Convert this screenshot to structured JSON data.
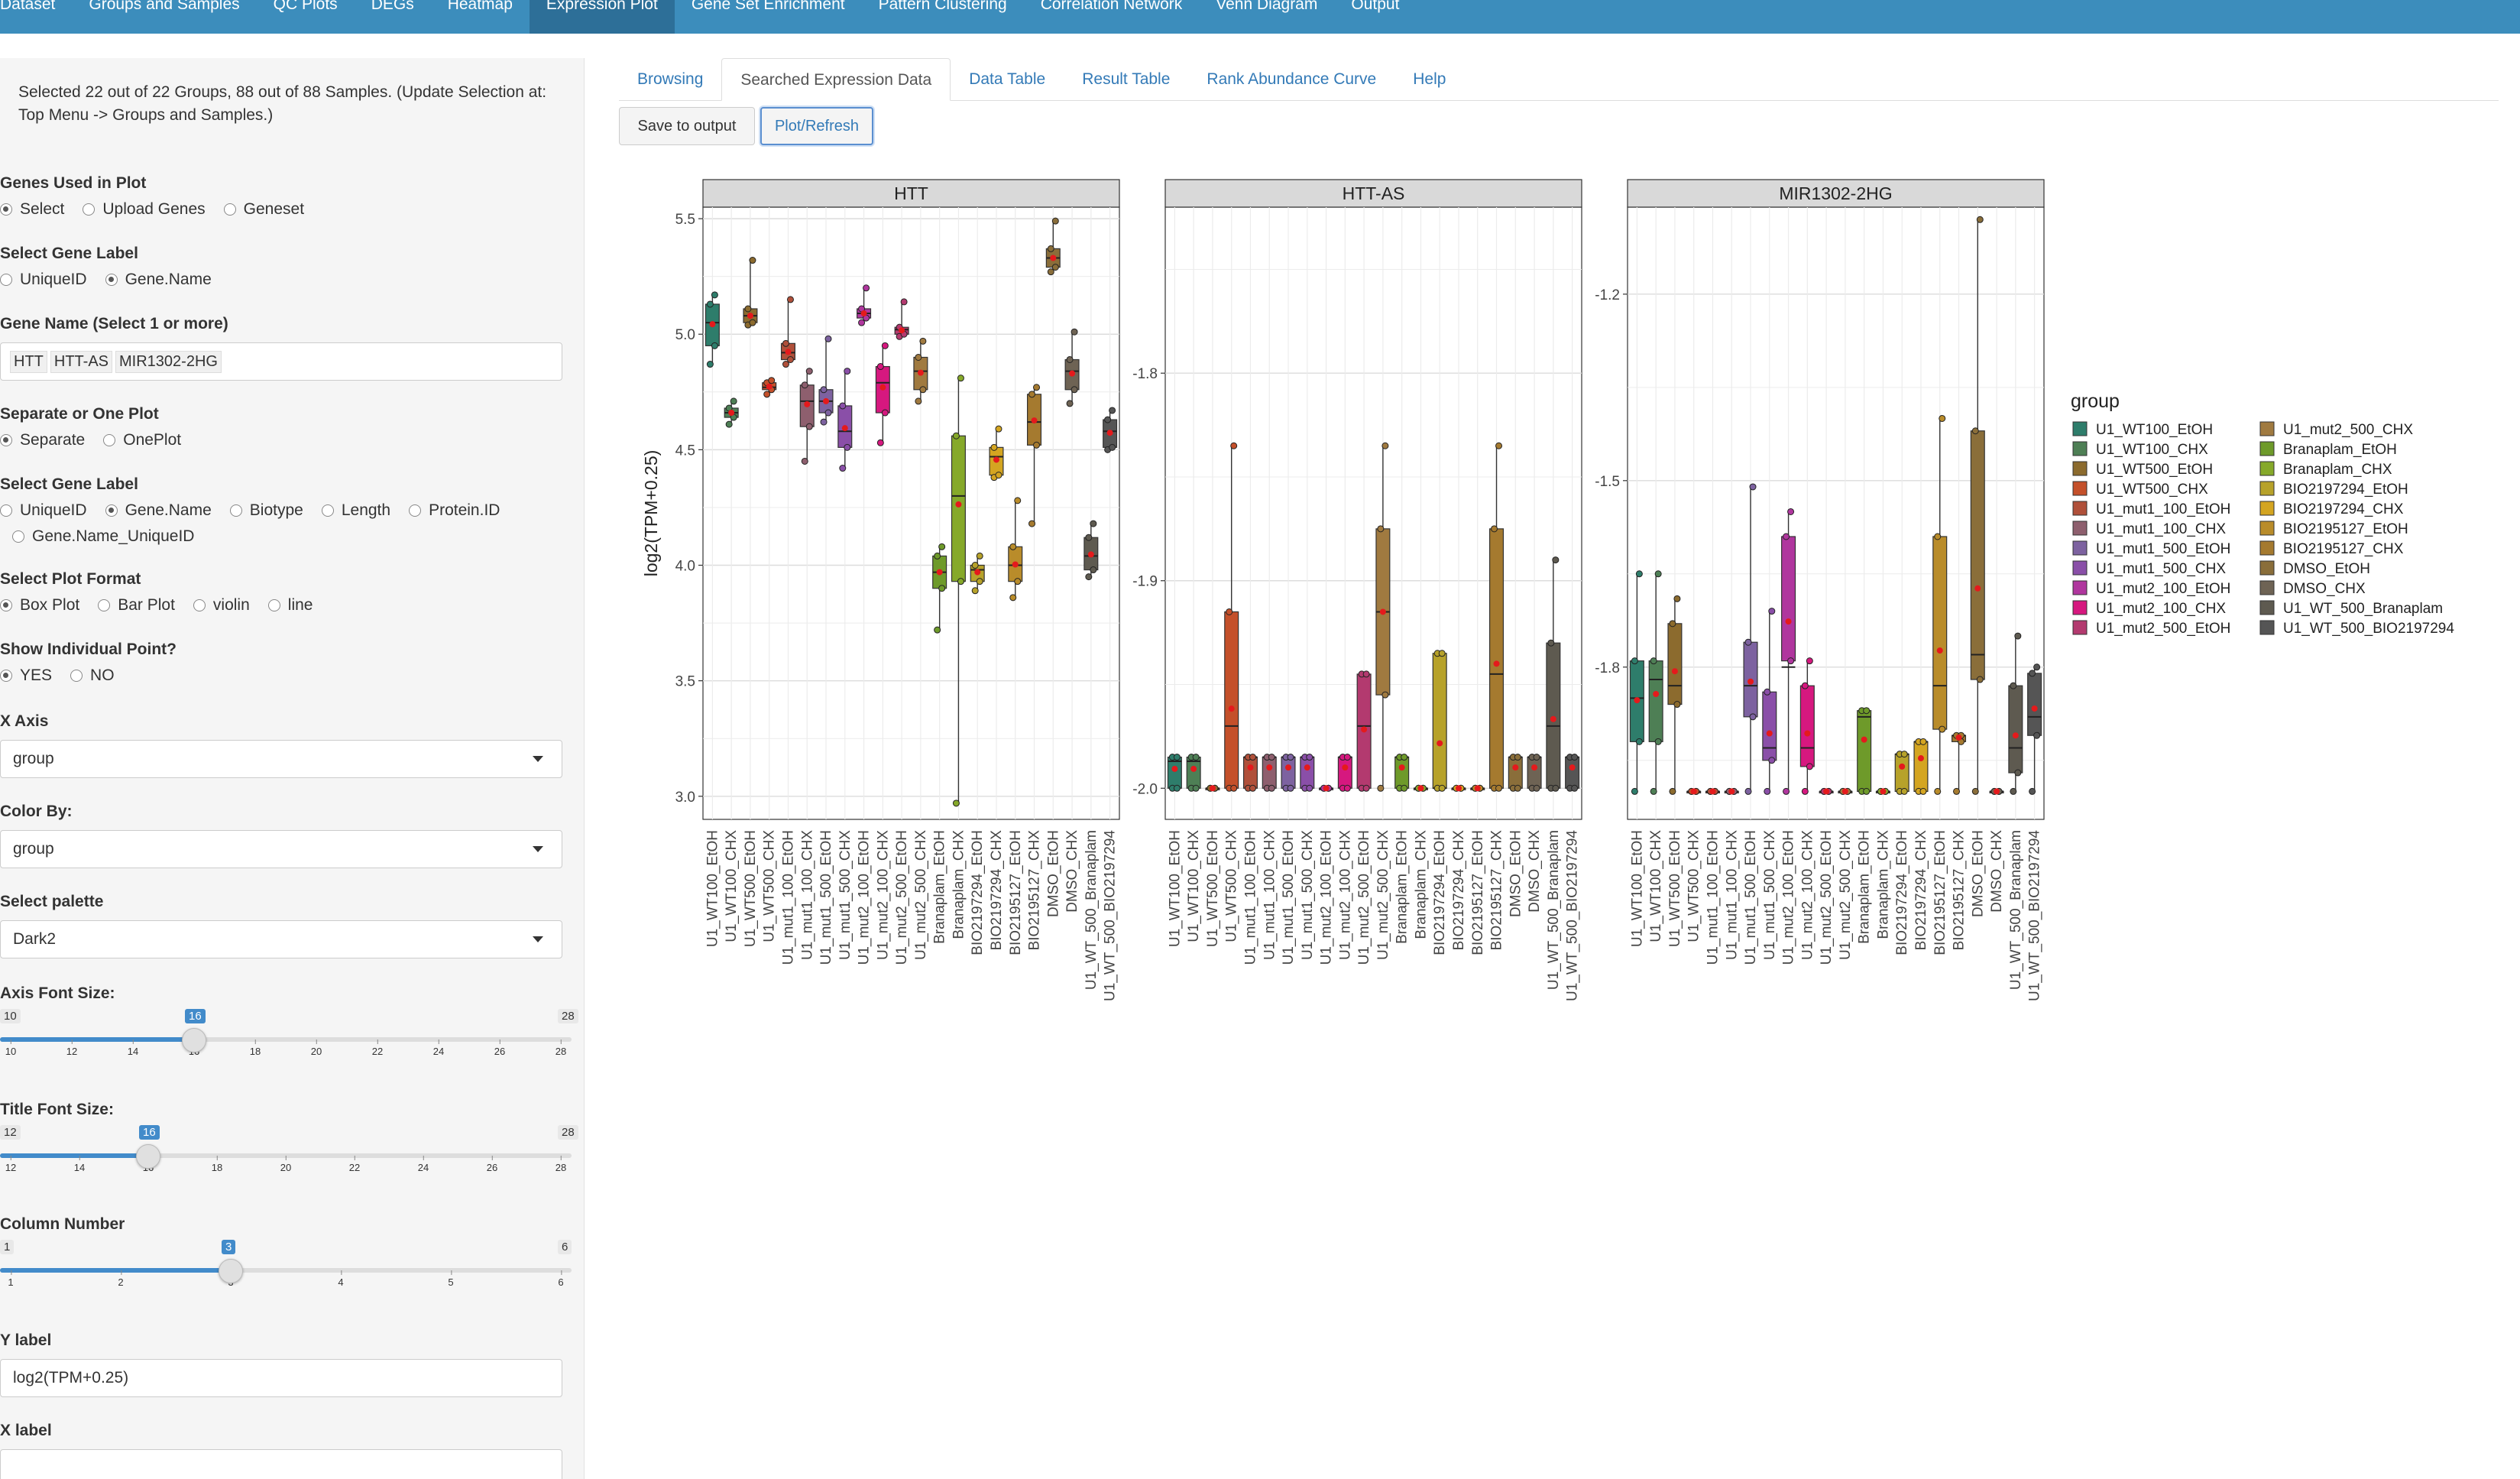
{
  "topnav": {
    "items": [
      "Dataset",
      "Groups and Samples",
      "QC Plots",
      "DEGs",
      "Heatmap",
      "Expression Plot",
      "Gene Set Enrichment",
      "Pattern Clustering",
      "Correlation Network",
      "Venn Diagram",
      "Output"
    ],
    "active_index": 5,
    "bg_color": "#3c8dbc"
  },
  "sidebar": {
    "selection_info": "Selected 22 out of 22 Groups, 88 out of 88 Samples. (Update Selection at: Top Menu -> Groups and Samples.)",
    "genes_used": {
      "label": "Genes Used in Plot",
      "options": [
        "Select",
        "Upload Genes",
        "Geneset"
      ],
      "selected": 0
    },
    "select_gene_label_1": {
      "label": "Select Gene Label",
      "options": [
        "UniqueID",
        "Gene.Name"
      ],
      "selected": 1
    },
    "gene_name": {
      "label": "Gene Name (Select 1 or more)",
      "tags": [
        "HTT",
        "HTT-AS",
        "MIR1302-2HG"
      ]
    },
    "separate_or_one": {
      "label": "Separate or One Plot",
      "options": [
        "Separate",
        "OnePlot"
      ],
      "selected": 0
    },
    "select_gene_label_2": {
      "label": "Select Gene Label",
      "options": [
        "UniqueID",
        "Gene.Name",
        "Biotype",
        "Length",
        "Protein.ID",
        "Gene.Name_UniqueID"
      ],
      "selected": 1
    },
    "plot_format": {
      "label": "Select Plot Format",
      "options": [
        "Box Plot",
        "Bar Plot",
        "violin",
        "line"
      ],
      "selected": 0
    },
    "show_points": {
      "label": "Show Individual Point?",
      "options": [
        "YES",
        "NO"
      ],
      "selected": 0
    },
    "x_axis": {
      "label": "X Axis",
      "value": "group"
    },
    "color_by": {
      "label": "Color By:",
      "value": "group"
    },
    "palette": {
      "label": "Select palette",
      "value": "Dark2"
    },
    "axis_font": {
      "label": "Axis Font Size:",
      "min": 10,
      "max": 28,
      "value": 16,
      "ticks": [
        10,
        12,
        14,
        16,
        18,
        20,
        22,
        24,
        26,
        28
      ]
    },
    "title_font": {
      "label": "Title Font Size:",
      "min": 12,
      "max": 28,
      "value": 16,
      "ticks": [
        12,
        14,
        16,
        18,
        20,
        22,
        24,
        26,
        28
      ]
    },
    "column_number": {
      "label": "Column Number",
      "min": 1,
      "max": 6,
      "value": 3,
      "ticks": [
        1,
        2,
        3,
        4,
        5,
        6
      ]
    },
    "y_label": {
      "label": "Y label",
      "value": "log2(TPM+0.25)"
    },
    "x_label": {
      "label": "X label",
      "value": ""
    }
  },
  "main": {
    "tabs": [
      "Browsing",
      "Searched Expression Data",
      "Data Table",
      "Result Table",
      "Rank Abundance Curve",
      "Help"
    ],
    "active_tab": 1,
    "buttons": {
      "save": "Save to output",
      "refresh": "Plot/Refresh"
    }
  },
  "chart_data": {
    "type": "box",
    "ylabel": "log2(TPM+0.25)",
    "legend_title": "group",
    "legend_position": "right",
    "groups": [
      "U1_WT100_EtOH",
      "U1_WT100_CHX",
      "U1_WT500_EtOH",
      "U1_WT500_CHX",
      "U1_mut1_100_EtOH",
      "U1_mut1_100_CHX",
      "U1_mut1_500_EtOH",
      "U1_mut1_500_CHX",
      "U1_mut2_100_EtOH",
      "U1_mut2_100_CHX",
      "U1_mut2_500_EtOH",
      "U1_mut2_500_CHX",
      "Branaplam_EtOH",
      "Branaplam_CHX",
      "BIO2197294_EtOH",
      "BIO2197294_CHX",
      "BIO2195127_EtOH",
      "BIO2195127_CHX",
      "DMSO_EtOH",
      "DMSO_CHX",
      "U1_WT_500_Branaplam",
      "U1_WT_500_BIO2197294"
    ],
    "colors": [
      "#2E7D6B",
      "#4E7F55",
      "#8C6B2E",
      "#C4502A",
      "#B0503A",
      "#8E5F6E",
      "#7D62A0",
      "#8A4FA8",
      "#B0369E",
      "#D6187F",
      "#B33A6F",
      "#A07A40",
      "#6E9A2A",
      "#86A92A",
      "#B7A22A",
      "#D4A521",
      "#B98C2A",
      "#A57A2F",
      "#8A6E3A",
      "#6E6354",
      "#5E5A50",
      "#555555"
    ],
    "panels": [
      {
        "title": "HTT",
        "ylim": [
          2.9,
          5.55
        ],
        "yticks": [
          3.0,
          3.5,
          4.0,
          4.5,
          5.0,
          5.5
        ],
        "boxes": [
          [
            4.87,
            4.95,
            5.05,
            5.13,
            5.17
          ],
          [
            4.61,
            4.64,
            4.66,
            4.68,
            4.71
          ],
          [
            5.04,
            5.05,
            5.08,
            5.11,
            5.32
          ],
          [
            4.74,
            4.76,
            4.77,
            4.79,
            4.8
          ],
          [
            4.87,
            4.89,
            4.92,
            4.96,
            5.15
          ],
          [
            4.45,
            4.6,
            4.71,
            4.78,
            4.84
          ],
          [
            4.62,
            4.66,
            4.71,
            4.76,
            4.98
          ],
          [
            4.42,
            4.51,
            4.58,
            4.69,
            4.84
          ],
          [
            5.05,
            5.07,
            5.09,
            5.11,
            5.2
          ],
          [
            4.53,
            4.66,
            4.79,
            4.86,
            4.95
          ],
          [
            4.99,
            5.0,
            5.02,
            5.03,
            5.14
          ],
          [
            4.71,
            4.76,
            4.84,
            4.9,
            4.97
          ],
          [
            3.72,
            3.9,
            3.97,
            4.04,
            4.08
          ],
          [
            2.97,
            3.93,
            4.3,
            4.56,
            4.81
          ],
          [
            3.89,
            3.93,
            3.98,
            4.0,
            4.04
          ],
          [
            4.38,
            4.39,
            4.47,
            4.51,
            4.59
          ],
          [
            3.86,
            3.93,
            4.0,
            4.08,
            4.28
          ],
          [
            4.18,
            4.52,
            4.62,
            4.74,
            4.77
          ],
          [
            5.27,
            5.29,
            5.33,
            5.37,
            5.49
          ],
          [
            4.7,
            4.76,
            4.84,
            4.89,
            5.01
          ],
          [
            3.95,
            3.98,
            4.04,
            4.12,
            4.18
          ],
          [
            4.5,
            4.51,
            4.58,
            4.63,
            4.67
          ]
        ]
      },
      {
        "title": "HTT-AS",
        "ylim": [
          -2.015,
          -1.72
        ],
        "yticks": [
          -1.8,
          -1.9,
          -2.0
        ],
        "boxes": [
          [
            -2.0,
            -2.0,
            -1.987,
            -1.985,
            -1.985
          ],
          [
            -2.0,
            -2.0,
            -1.987,
            -1.985,
            -1.985
          ],
          [
            -2.0,
            -2.0,
            -2.0,
            -2.0,
            -2.0
          ],
          [
            -2.0,
            -2.0,
            -1.97,
            -1.915,
            -1.835
          ],
          [
            -2.0,
            -2.0,
            -1.985,
            -1.985,
            -1.985
          ],
          [
            -2.0,
            -2.0,
            -1.985,
            -1.985,
            -1.985
          ],
          [
            -2.0,
            -2.0,
            -1.985,
            -1.985,
            -1.985
          ],
          [
            -2.0,
            -2.0,
            -1.985,
            -1.985,
            -1.985
          ],
          [
            -2.0,
            -2.0,
            -2.0,
            -2.0,
            -2.0
          ],
          [
            -2.0,
            -2.0,
            -1.985,
            -1.985,
            -1.985
          ],
          [
            -2.0,
            -2.0,
            -1.97,
            -1.945,
            -1.945
          ],
          [
            -2.0,
            -1.955,
            -1.915,
            -1.875,
            -1.835
          ],
          [
            -2.0,
            -2.0,
            -1.985,
            -1.985,
            -1.985
          ],
          [
            -2.0,
            -2.0,
            -2.0,
            -2.0,
            -2.0
          ],
          [
            -2.0,
            -2.0,
            -2.0,
            -1.935,
            -1.935
          ],
          [
            -2.0,
            -2.0,
            -2.0,
            -2.0,
            -2.0
          ],
          [
            -2.0,
            -2.0,
            -2.0,
            -2.0,
            -2.0
          ],
          [
            -2.0,
            -2.0,
            -1.945,
            -1.875,
            -1.835
          ],
          [
            -2.0,
            -2.0,
            -1.985,
            -1.985,
            -1.985
          ],
          [
            -2.0,
            -2.0,
            -1.985,
            -1.985,
            -1.985
          ],
          [
            -2.0,
            -2.0,
            -1.97,
            -1.93,
            -1.89
          ],
          [
            -2.0,
            -2.0,
            -1.985,
            -1.985,
            -1.985
          ]
        ]
      },
      {
        "title": "MIR1302-2HG",
        "ylim": [
          -2.045,
          -1.06
        ],
        "yticks": [
          -1.2,
          -1.5,
          -1.8
        ],
        "boxes": [
          [
            -2.0,
            -1.92,
            -1.85,
            -1.79,
            -1.65
          ],
          [
            -2.0,
            -1.92,
            -1.82,
            -1.79,
            -1.65
          ],
          [
            -2.0,
            -1.86,
            -1.83,
            -1.73,
            -1.69
          ],
          [
            -2.0,
            -2.0,
            -2.0,
            -2.0,
            -2.0
          ],
          [
            -2.0,
            -2.0,
            -2.0,
            -2.0,
            -2.0
          ],
          [
            -2.0,
            -2.0,
            -2.0,
            -2.0,
            -2.0
          ],
          [
            -2.0,
            -1.88,
            -1.83,
            -1.76,
            -1.51
          ],
          [
            -2.0,
            -1.95,
            -1.93,
            -1.84,
            -1.71
          ],
          [
            -2.0,
            -1.79,
            -1.8,
            -1.59,
            -1.55
          ],
          [
            -2.0,
            -1.96,
            -1.93,
            -1.83,
            -1.79
          ],
          [
            -2.0,
            -2.0,
            -2.0,
            -2.0,
            -2.0
          ],
          [
            -2.0,
            -2.0,
            -2.0,
            -2.0,
            -2.0
          ],
          [
            -2.0,
            -2.0,
            -1.88,
            -1.87,
            -1.87
          ],
          [
            -2.0,
            -2.0,
            -2.0,
            -2.0,
            -2.0
          ],
          [
            -2.0,
            -2.0,
            -1.94,
            -1.94,
            -1.94
          ],
          [
            -2.0,
            -2.0,
            -1.92,
            -1.92,
            -1.92
          ],
          [
            -2.0,
            -1.9,
            -1.83,
            -1.59,
            -1.4
          ],
          [
            -2.0,
            -1.92,
            -1.91,
            -1.91,
            -1.91
          ],
          [
            -2.0,
            -1.82,
            -1.78,
            -1.42,
            -1.08
          ],
          [
            -2.0,
            -2.0,
            -2.0,
            -2.0,
            -2.0
          ],
          [
            -2.0,
            -1.97,
            -1.93,
            -1.83,
            -1.75
          ],
          [
            -2.0,
            -1.91,
            -1.88,
            -1.81,
            -1.8
          ]
        ]
      }
    ]
  }
}
